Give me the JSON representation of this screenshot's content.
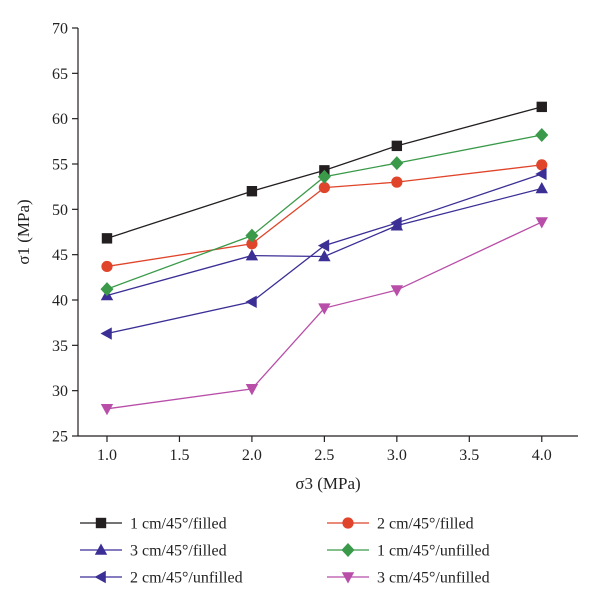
{
  "chart_data": {
    "type": "line",
    "xlabel": "σ3 (MPa)",
    "ylabel": "σ1 (MPa)",
    "xlim": [
      0.8,
      4.25
    ],
    "ylim": [
      25,
      70
    ],
    "xticks": [
      1.0,
      1.5,
      2.0,
      2.5,
      3.0,
      3.5,
      4.0
    ],
    "xtick_labels": [
      "1.0",
      "1.5",
      "2.0",
      "2.5",
      "3.0",
      "3.5",
      "4.0"
    ],
    "yticks": [
      25,
      30,
      35,
      40,
      45,
      50,
      55,
      60,
      65,
      70
    ],
    "ytick_labels": [
      "25",
      "30",
      "35",
      "40",
      "45",
      "50",
      "55",
      "60",
      "65",
      "70"
    ],
    "x": [
      1.0,
      2.0,
      2.5,
      3.0,
      4.0
    ],
    "grid": false,
    "legend_position": "bottom",
    "series": [
      {
        "name": "1 cm/45°/filled",
        "color": "#231f20",
        "marker": "square",
        "x": [
          1.0,
          2.0,
          2.5,
          3.0,
          4.0
        ],
        "values": [
          46.8,
          52.0,
          54.3,
          57.0,
          61.3
        ]
      },
      {
        "name": "2 cm/45°/filled",
        "color": "#e0442a",
        "marker": "circle",
        "x": [
          1.0,
          2.0,
          2.5,
          3.0,
          4.0
        ],
        "values": [
          43.7,
          46.2,
          52.4,
          53.0,
          54.9
        ]
      },
      {
        "name": "3 cm/45°/filled",
        "color": "#3b2f96",
        "marker": "triangle-up",
        "x": [
          1.0,
          2.0,
          2.5,
          3.0,
          4.0
        ],
        "values": [
          40.5,
          44.9,
          44.8,
          48.2,
          52.3
        ]
      },
      {
        "name": "1 cm/45°/unfilled",
        "color": "#3a9a4a",
        "marker": "diamond",
        "x": [
          1.0,
          2.0,
          2.5,
          3.0,
          4.0
        ],
        "values": [
          41.2,
          47.1,
          53.6,
          55.1,
          58.2
        ]
      },
      {
        "name": "2 cm/45°/unfilled",
        "color": "#3b2f96",
        "marker": "triangle-left",
        "x": [
          1.0,
          2.0,
          2.5,
          3.0,
          4.0
        ],
        "values": [
          36.3,
          39.8,
          46.0,
          48.5,
          53.9
        ]
      },
      {
        "name": "3 cm/45°/unfilled",
        "color": "#b84ea8",
        "marker": "triangle-down",
        "x": [
          1.0,
          2.0,
          2.5,
          3.0,
          4.0
        ],
        "values": [
          28.0,
          30.2,
          39.1,
          41.1,
          48.6
        ]
      }
    ]
  }
}
